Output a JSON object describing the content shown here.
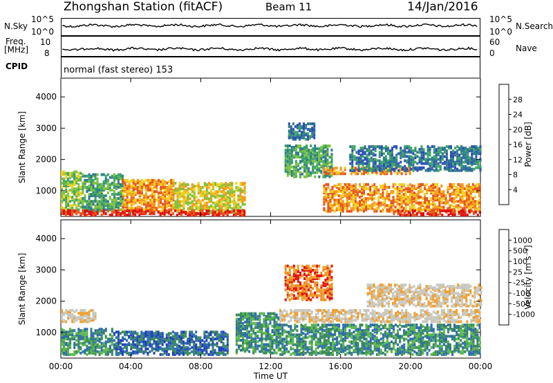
{
  "header": {
    "title": "Zhongshan Station (fitACF)",
    "beam": "Beam 11",
    "date": "14/Jan/2016"
  },
  "top_panels": {
    "nsky_label": "N.Sky",
    "nsearch_label": "N.Search",
    "nsky_ticks": [
      "10^5",
      "10^0"
    ],
    "nsearch_ticks": [
      "10^5",
      "10^0"
    ],
    "freq_label": "Freq.",
    "freq_unit": "[MHz]",
    "freq_ticks": [
      "10",
      "8"
    ],
    "nave_label": "Nave",
    "nave_ticks": [
      "60",
      "0"
    ],
    "cpid_label": "CPID",
    "cpid_text": "normal (fast stereo) 153"
  },
  "chart_data": [
    {
      "type": "heatmap",
      "name": "power",
      "ylabel": "Slant Range [km]",
      "yticks": [
        1000,
        2000,
        3000,
        4000
      ],
      "ylim": [
        180,
        4600
      ],
      "xlim": [
        0,
        24
      ],
      "xticks": [
        0,
        4,
        8,
        12,
        16,
        20,
        24
      ],
      "colorbar": {
        "label": "Power [dB]",
        "ticks": [
          "4",
          "8",
          "12",
          "16",
          "20",
          "24",
          "28"
        ],
        "colors": [
          "#1f1fff",
          "#2d4fb8",
          "#2f7b8a",
          "#3aa565",
          "#7cc23c",
          "#f0d020",
          "#f59a1a",
          "#e8541c",
          "#e01010"
        ]
      },
      "echo_regions": [
        {
          "t0": 0.0,
          "t1": 1.2,
          "r0": 300,
          "r1": 1600,
          "level": 4
        },
        {
          "t0": 1.2,
          "t1": 3.5,
          "r0": 300,
          "r1": 1500,
          "level": 3
        },
        {
          "t0": 3.5,
          "t1": 6.5,
          "r0": 300,
          "r1": 1300,
          "level": 6
        },
        {
          "t0": 6.5,
          "t1": 10.5,
          "r0": 250,
          "r1": 1200,
          "level": 5
        },
        {
          "t0": 0.0,
          "t1": 10.5,
          "r0": 180,
          "r1": 330,
          "level": 8
        },
        {
          "t0": 12.8,
          "t1": 15.5,
          "r0": 1400,
          "r1": 2400,
          "level": 3
        },
        {
          "t0": 13.0,
          "t1": 14.5,
          "r0": 2600,
          "r1": 3100,
          "level": 2
        },
        {
          "t0": 15.0,
          "t1": 20.0,
          "r0": 1500,
          "r1": 1700,
          "level": 6
        },
        {
          "t0": 16.5,
          "t1": 24.0,
          "r0": 1600,
          "r1": 2400,
          "level": 2
        },
        {
          "t0": 15.0,
          "t1": 24.0,
          "r0": 300,
          "r1": 1200,
          "level": 6
        },
        {
          "t0": 19.0,
          "t1": 24.0,
          "r0": 180,
          "r1": 350,
          "level": 8
        }
      ]
    },
    {
      "type": "heatmap",
      "name": "velocity",
      "ylabel": "Slant Range [km]",
      "yticks": [
        1000,
        2000,
        3000,
        4000
      ],
      "ylim": [
        180,
        4600
      ],
      "xlim": [
        0,
        24
      ],
      "xticks": [
        0,
        4,
        8,
        12,
        16,
        20,
        24
      ],
      "xlabel": "Time UT",
      "xtick_labels": [
        "00:00",
        "04:00",
        "08:00",
        "12:00",
        "16:00",
        "20:00",
        "00:00"
      ],
      "colorbar": {
        "label": "Velocity [m s⁻¹]",
        "ticks": [
          "-1000",
          "-500",
          "-100",
          "-25",
          "25",
          "100",
          "500",
          "1000"
        ],
        "colors": [
          "#e01010",
          "#f08a18",
          "#f0a030",
          "#c8c8c0",
          "#c8c8c0",
          "#59b84a",
          "#3a8a5a",
          "#2d6bb0",
          "#1f3fc0"
        ]
      },
      "echo_regions": [
        {
          "t0": 0.0,
          "t1": 2.0,
          "r0": 1300,
          "r1": 1700,
          "level": 3
        },
        {
          "t0": 0.0,
          "t1": 3.0,
          "r0": 250,
          "r1": 1100,
          "level": 6
        },
        {
          "t0": 3.0,
          "t1": 9.5,
          "r0": 250,
          "r1": 1000,
          "level": 7
        },
        {
          "t0": 10.0,
          "t1": 12.5,
          "r0": 300,
          "r1": 1600,
          "level": 6
        },
        {
          "t0": 12.8,
          "t1": 15.5,
          "r0": 2000,
          "r1": 3100,
          "level": 1
        },
        {
          "t0": 12.5,
          "t1": 24.0,
          "r0": 1300,
          "r1": 1700,
          "level": 3
        },
        {
          "t0": 17.5,
          "t1": 24.0,
          "r0": 1800,
          "r1": 2500,
          "level": 3
        },
        {
          "t0": 12.5,
          "t1": 24.0,
          "r0": 250,
          "r1": 1200,
          "level": 6
        }
      ]
    }
  ]
}
